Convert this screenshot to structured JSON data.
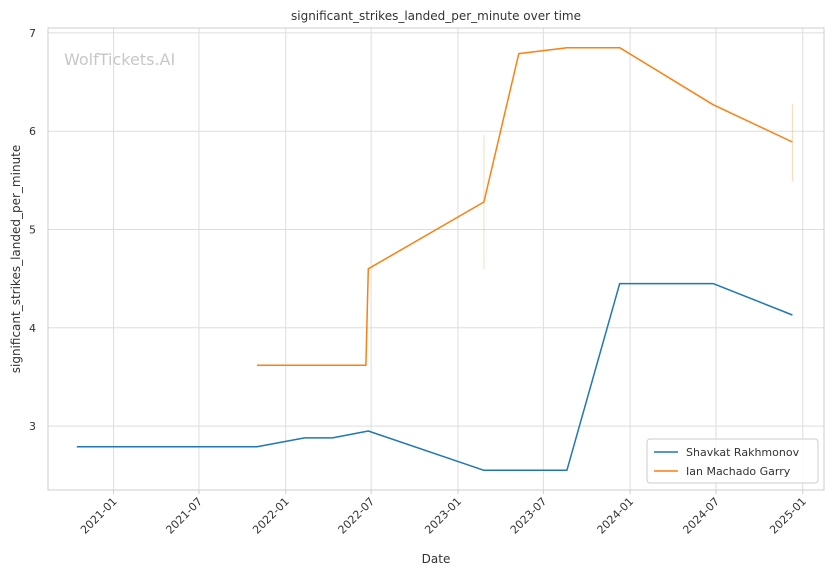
{
  "chart_data": {
    "type": "line",
    "title": "significant_strikes_landed_per_minute over time",
    "xlabel": "Date",
    "ylabel": "significant_strikes_landed_per_minute",
    "watermark": "WolfTickets.AI",
    "xlim": [
      "2020-08-15",
      "2025-02-15"
    ],
    "ylim": [
      2.35,
      7.05
    ],
    "x_ticks": [
      "2021-01",
      "2021-07",
      "2022-01",
      "2022-07",
      "2023-01",
      "2023-07",
      "2024-01",
      "2024-07",
      "2025-01"
    ],
    "y_ticks": [
      3,
      4,
      5,
      6,
      7
    ],
    "grid": true,
    "legend_position": "lower-right",
    "series": [
      {
        "name": "Shavkat Rakhmonov",
        "color": "#1f77b4",
        "points": [
          {
            "x": "2020-10-15",
            "y": 2.79
          },
          {
            "x": "2021-11-01",
            "y": 2.79
          },
          {
            "x": "2022-02-10",
            "y": 2.88
          },
          {
            "x": "2022-04-10",
            "y": 2.88
          },
          {
            "x": "2022-06-25",
            "y": 2.95
          },
          {
            "x": "2023-02-25",
            "y": 2.55
          },
          {
            "x": "2023-08-20",
            "y": 2.55
          },
          {
            "x": "2023-12-10",
            "y": 4.45
          },
          {
            "x": "2024-06-25",
            "y": 4.45
          },
          {
            "x": "2024-12-10",
            "y": 4.13
          }
        ]
      },
      {
        "name": "Ian Machado Garry",
        "color": "#ff7f0e",
        "points": [
          {
            "x": "2021-11-01",
            "y": 3.62
          },
          {
            "x": "2022-06-20",
            "y": 3.62
          },
          {
            "x": "2022-06-25",
            "y": 4.6
          },
          {
            "x": "2023-02-25",
            "y": 5.28
          },
          {
            "x": "2023-05-10",
            "y": 6.79
          },
          {
            "x": "2023-08-20",
            "y": 6.85
          },
          {
            "x": "2023-12-10",
            "y": 6.85
          },
          {
            "x": "2024-06-25",
            "y": 6.27
          },
          {
            "x": "2024-12-10",
            "y": 5.89
          }
        ],
        "error_bars": [
          {
            "x": "2023-02-25",
            "low": 4.6,
            "high": 5.96
          },
          {
            "x": "2024-12-10",
            "low": 5.49,
            "high": 6.28
          }
        ]
      }
    ]
  }
}
